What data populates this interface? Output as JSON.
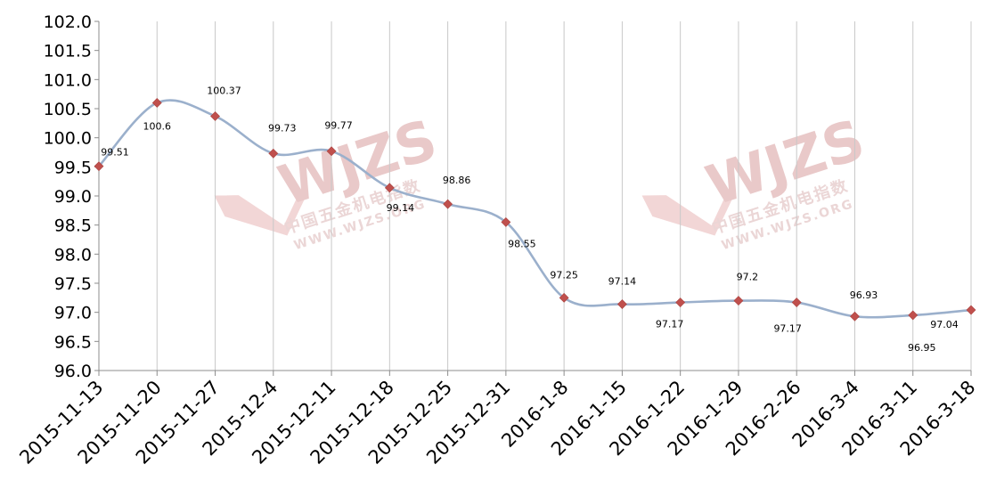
{
  "chart_data": {
    "type": "line",
    "title": "",
    "xlabel": "",
    "ylabel": "",
    "ylim": [
      96.0,
      102.0
    ],
    "yticks": [
      "96.0",
      "96.5",
      "97.0",
      "97.5",
      "98.0",
      "98.5",
      "99.0",
      "99.5",
      "100.0",
      "100.5",
      "101.0",
      "101.5",
      "102.0"
    ],
    "categories": [
      "2015-11-13",
      "2015-11-20",
      "2015-11-27",
      "2015-12-4",
      "2015-12-11",
      "2015-12-18",
      "2015-12-25",
      "2015-12-31",
      "2016-1-8",
      "2016-1-15",
      "2016-1-22",
      "2016-1-29",
      "2016-2-26",
      "2016-3-4",
      "2016-3-11",
      "2016-3-18"
    ],
    "series": [
      {
        "values": [
          99.51,
          100.6,
          100.37,
          99.73,
          99.77,
          99.14,
          98.86,
          98.55,
          97.25,
          97.14,
          97.17,
          97.2,
          97.17,
          96.93,
          96.95,
          97.04
        ],
        "data_labels": [
          "99.51",
          "100.6",
          "100.37",
          "99.73",
          "99.77",
          "99.14",
          "98.86",
          "98.55",
          "97.25",
          "97.14",
          "97.17",
          "97.2",
          "97.17",
          "96.93",
          "96.95",
          "97.04"
        ],
        "color": "#9bb0cc",
        "marker_color": "#c0504d"
      }
    ],
    "grid": "vertical-only",
    "legend": "none"
  },
  "watermarks": [
    {
      "logo_text": "WJZS",
      "chinese_text": "中国五金机电指数",
      "url_text": "WWW.WJZS.ORG"
    },
    {
      "logo_text": "WJZS",
      "chinese_text": "中国五金机电指数",
      "url_text": "WWW.WJZS.ORG"
    }
  ]
}
